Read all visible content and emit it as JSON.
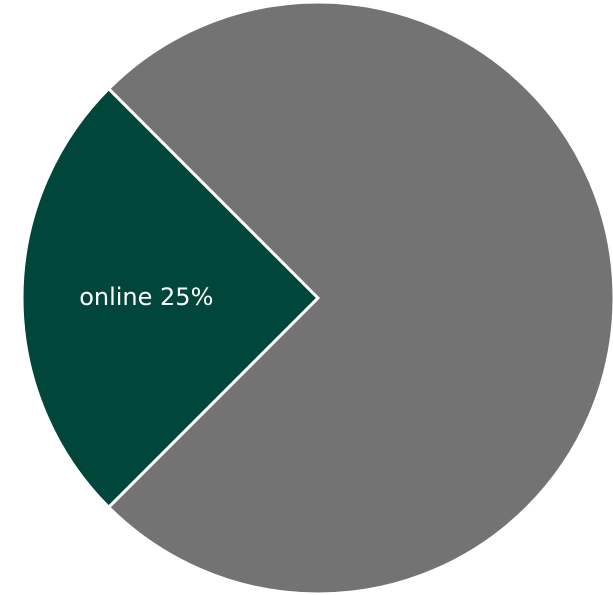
{
  "chart_data": {
    "type": "pie",
    "slices": [
      {
        "label": "online 25%",
        "value": 25,
        "color": "#00463A"
      },
      {
        "label": "",
        "value": 75,
        "color": "#737373"
      }
    ]
  }
}
